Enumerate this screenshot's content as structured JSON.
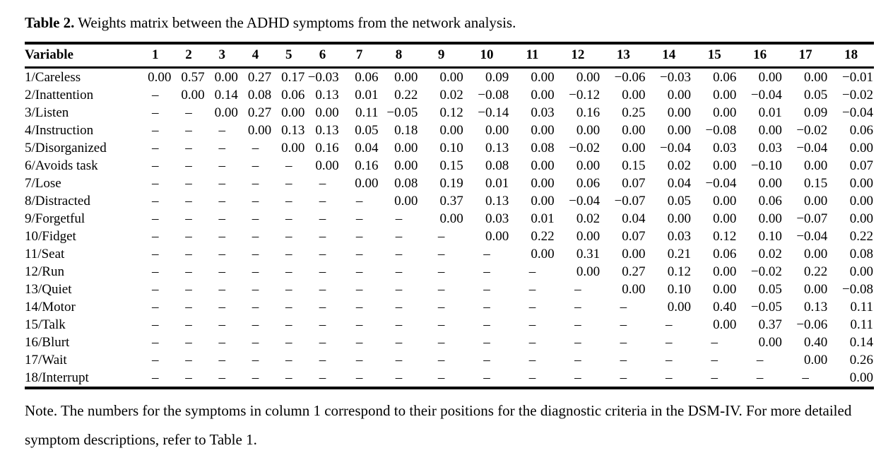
{
  "caption": {
    "label": "Table 2.",
    "text": "Weights matrix between the ADHD symptoms from the network analysis."
  },
  "table": {
    "empty_cell": "–",
    "header": [
      "Variable",
      "1",
      "2",
      "3",
      "4",
      "5",
      "6",
      "7",
      "8",
      "9",
      "10",
      "11",
      "12",
      "13",
      "14",
      "15",
      "16",
      "17",
      "18"
    ],
    "rows": [
      {
        "label": "1/Careless",
        "values": [
          "0.00",
          "0.57",
          "0.00",
          "0.27",
          "0.17",
          "−0.03",
          "0.06",
          "0.00",
          "0.00",
          "0.09",
          "0.00",
          "0.00",
          "−0.06",
          "−0.03",
          "0.06",
          "0.00",
          "0.00",
          "−0.01"
        ]
      },
      {
        "label": "2/Inattention",
        "values": [
          "–",
          "0.00",
          "0.14",
          "0.08",
          "0.06",
          "0.13",
          "0.01",
          "0.22",
          "0.02",
          "−0.08",
          "0.00",
          "−0.12",
          "0.00",
          "0.00",
          "0.00",
          "−0.04",
          "0.05",
          "−0.02"
        ]
      },
      {
        "label": "3/Listen",
        "values": [
          "–",
          "–",
          "0.00",
          "0.27",
          "0.00",
          "0.00",
          "0.11",
          "−0.05",
          "0.12",
          "−0.14",
          "0.03",
          "0.16",
          "0.25",
          "0.00",
          "0.00",
          "0.01",
          "0.09",
          "−0.04"
        ]
      },
      {
        "label": "4/Instruction",
        "values": [
          "–",
          "–",
          "–",
          "0.00",
          "0.13",
          "0.13",
          "0.05",
          "0.18",
          "0.00",
          "0.00",
          "0.00",
          "0.00",
          "0.00",
          "0.00",
          "−0.08",
          "0.00",
          "−0.02",
          "0.06"
        ]
      },
      {
        "label": "5/Disorganized",
        "values": [
          "–",
          "–",
          "–",
          "–",
          "0.00",
          "0.16",
          "0.04",
          "0.00",
          "0.10",
          "0.13",
          "0.08",
          "−0.02",
          "0.00",
          "−0.04",
          "0.03",
          "0.03",
          "−0.04",
          "0.00"
        ]
      },
      {
        "label": "6/Avoids task",
        "values": [
          "–",
          "–",
          "–",
          "–",
          "–",
          "0.00",
          "0.16",
          "0.00",
          "0.15",
          "0.08",
          "0.00",
          "0.00",
          "0.15",
          "0.02",
          "0.00",
          "−0.10",
          "0.00",
          "0.07"
        ]
      },
      {
        "label": "7/Lose",
        "values": [
          "–",
          "–",
          "–",
          "–",
          "–",
          "–",
          "0.00",
          "0.08",
          "0.19",
          "0.01",
          "0.00",
          "0.06",
          "0.07",
          "0.04",
          "−0.04",
          "0.00",
          "0.15",
          "0.00"
        ]
      },
      {
        "label": "8/Distracted",
        "values": [
          "–",
          "–",
          "–",
          "–",
          "–",
          "–",
          "–",
          "0.00",
          "0.37",
          "0.13",
          "0.00",
          "−0.04",
          "−0.07",
          "0.05",
          "0.00",
          "0.06",
          "0.00",
          "0.00"
        ]
      },
      {
        "label": "9/Forgetful",
        "values": [
          "–",
          "–",
          "–",
          "–",
          "–",
          "–",
          "–",
          "–",
          "0.00",
          "0.03",
          "0.01",
          "0.02",
          "0.04",
          "0.00",
          "0.00",
          "0.00",
          "−0.07",
          "0.00"
        ]
      },
      {
        "label": "10/Fidget",
        "values": [
          "–",
          "–",
          "–",
          "–",
          "–",
          "–",
          "–",
          "–",
          "–",
          "0.00",
          "0.22",
          "0.00",
          "0.07",
          "0.03",
          "0.12",
          "0.10",
          "−0.04",
          "0.22"
        ]
      },
      {
        "label": "11/Seat",
        "values": [
          "–",
          "–",
          "–",
          "–",
          "–",
          "–",
          "–",
          "–",
          "–",
          "–",
          "0.00",
          "0.31",
          "0.00",
          "0.21",
          "0.06",
          "0.02",
          "0.00",
          "0.08"
        ]
      },
      {
        "label": "12/Run",
        "values": [
          "–",
          "–",
          "–",
          "–",
          "–",
          "–",
          "–",
          "–",
          "–",
          "–",
          "–",
          "0.00",
          "0.27",
          "0.12",
          "0.00",
          "−0.02",
          "0.22",
          "0.00"
        ]
      },
      {
        "label": "13/Quiet",
        "values": [
          "–",
          "–",
          "–",
          "–",
          "–",
          "–",
          "–",
          "–",
          "–",
          "–",
          "–",
          "–",
          "0.00",
          "0.10",
          "0.00",
          "0.05",
          "0.00",
          "−0.08"
        ]
      },
      {
        "label": "14/Motor",
        "values": [
          "–",
          "–",
          "–",
          "–",
          "–",
          "–",
          "–",
          "–",
          "–",
          "–",
          "–",
          "–",
          "–",
          "0.00",
          "0.40",
          "−0.05",
          "0.13",
          "0.11"
        ]
      },
      {
        "label": "15/Talk",
        "values": [
          "–",
          "–",
          "–",
          "–",
          "–",
          "–",
          "–",
          "–",
          "–",
          "–",
          "–",
          "–",
          "–",
          "–",
          "0.00",
          "0.37",
          "−0.06",
          "0.11"
        ]
      },
      {
        "label": "16/Blurt",
        "values": [
          "–",
          "–",
          "–",
          "–",
          "–",
          "–",
          "–",
          "–",
          "–",
          "–",
          "–",
          "–",
          "–",
          "–",
          "–",
          "0.00",
          "0.40",
          "0.14"
        ]
      },
      {
        "label": "17/Wait",
        "values": [
          "–",
          "–",
          "–",
          "–",
          "–",
          "–",
          "–",
          "–",
          "–",
          "–",
          "–",
          "–",
          "–",
          "–",
          "–",
          "–",
          "0.00",
          "0.26"
        ]
      },
      {
        "label": "18/Interrupt",
        "values": [
          "–",
          "–",
          "–",
          "–",
          "–",
          "–",
          "–",
          "–",
          "–",
          "–",
          "–",
          "–",
          "–",
          "–",
          "–",
          "–",
          "–",
          "0.00"
        ]
      }
    ]
  },
  "note": "Note. The numbers for the symptoms in column 1 correspond to their positions for the diagnostic criteria in the DSM-IV. For more detailed symptom descriptions, refer to Table 1."
}
